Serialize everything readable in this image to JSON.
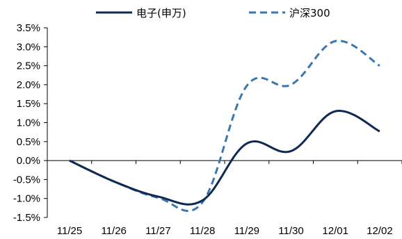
{
  "chart_data": {
    "type": "line",
    "title": "",
    "xlabel": "",
    "ylabel": "",
    "categories": [
      "11/25",
      "11/26",
      "11/27",
      "11/28",
      "11/29",
      "11/30",
      "12/01",
      "12/02"
    ],
    "ylim": [
      -1.5,
      3.5
    ],
    "yticks": [
      "3.5%",
      "3.0%",
      "2.5%",
      "2.0%",
      "1.5%",
      "1.0%",
      "0.5%",
      "0.0%",
      "-0.5%",
      "-1.0%",
      "-1.5%"
    ],
    "ytick_values": [
      3.5,
      3.0,
      2.5,
      2.0,
      1.5,
      1.0,
      0.5,
      0.0,
      -0.5,
      -1.0,
      -1.5
    ],
    "grid": false,
    "legend_position": "top",
    "series": [
      {
        "name": "电子(申万)",
        "style": "solid",
        "color": "#0e2a52",
        "values": [
          0.0,
          -0.55,
          -0.95,
          -1.05,
          0.45,
          0.25,
          1.3,
          0.77
        ]
      },
      {
        "name": "沪深300",
        "style": "dashed",
        "color": "#3a76b0",
        "values": [
          0.0,
          -0.55,
          -0.98,
          -1.1,
          1.97,
          2.0,
          3.15,
          2.5
        ]
      }
    ]
  }
}
